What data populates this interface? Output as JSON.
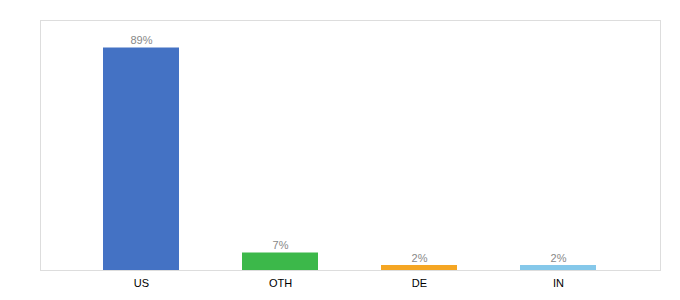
{
  "chart_data": {
    "type": "bar",
    "categories": [
      "US",
      "OTH",
      "DE",
      "IN"
    ],
    "values": [
      89,
      7,
      2,
      2
    ],
    "value_labels": [
      "89%",
      "7%",
      "2%",
      "2%"
    ],
    "colors": [
      "#4472C4",
      "#3CB84A",
      "#F5A623",
      "#85C8EA"
    ],
    "ylim": [
      0,
      100
    ],
    "data_labels": true,
    "tick_labels": "x",
    "grid": false
  }
}
